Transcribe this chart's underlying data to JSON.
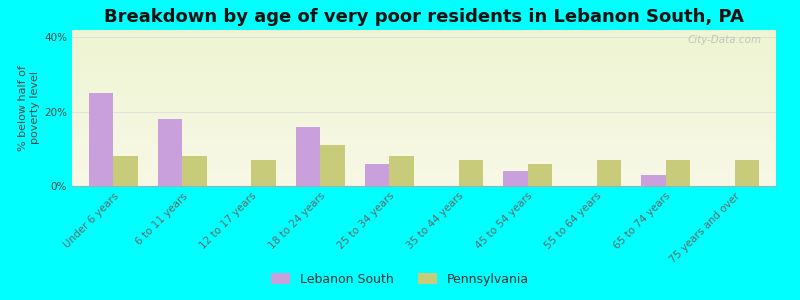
{
  "title": "Breakdown by age of very poor residents in Lebanon South, PA",
  "ylabel": "% below half of\npoverty level",
  "categories": [
    "Under 6 years",
    "6 to 11 years",
    "12 to 17 years",
    "18 to 24 years",
    "25 to 34 years",
    "35 to 44 years",
    "45 to 54 years",
    "55 to 64 years",
    "65 to 74 years",
    "75 years and over"
  ],
  "lebanon_south": [
    25,
    18,
    0,
    16,
    6,
    0,
    4,
    0,
    3,
    0
  ],
  "pennsylvania": [
    8,
    8,
    7,
    11,
    8,
    7,
    6,
    7,
    7,
    7
  ],
  "lebanon_color": "#c9a0dc",
  "pennsylvania_color": "#c8cc7a",
  "background_outer": "#00ffff",
  "ylim": [
    0,
    42
  ],
  "yticks": [
    0,
    20,
    40
  ],
  "ytick_labels": [
    "0%",
    "20%",
    "40%"
  ],
  "bar_width": 0.35,
  "legend_labels": [
    "Lebanon South",
    "Pennsylvania"
  ],
  "title_fontsize": 13,
  "axis_fontsize": 8,
  "tick_fontsize": 7.5,
  "watermark": "City-Data.com"
}
